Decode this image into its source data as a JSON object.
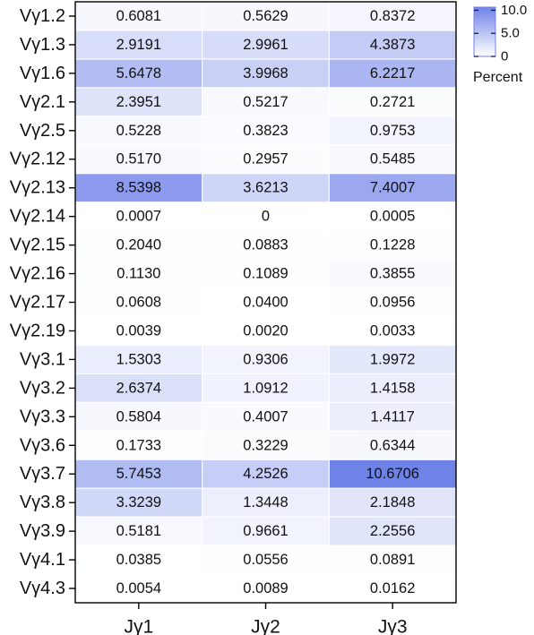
{
  "chart_data": {
    "type": "heatmap",
    "rows": [
      "Vγ1.2",
      "Vγ1.3",
      "Vγ1.6",
      "Vγ2.1",
      "Vγ2.5",
      "Vγ2.12",
      "Vγ2.13",
      "Vγ2.14",
      "Vγ2.15",
      "Vγ2.16",
      "Vγ2.17",
      "Vγ2.19",
      "Vγ3.1",
      "Vγ3.2",
      "Vγ3.3",
      "Vγ3.6",
      "Vγ3.7",
      "Vγ3.8",
      "Vγ3.9",
      "Vγ4.1",
      "Vγ4.3"
    ],
    "columns": [
      "Jγ1",
      "Jγ2",
      "Jγ3"
    ],
    "values": [
      [
        "0.6081",
        "0.5629",
        "0.8372"
      ],
      [
        "2.9191",
        "2.9961",
        "4.3873"
      ],
      [
        "5.6478",
        "3.9968",
        "6.2217"
      ],
      [
        "2.3951",
        "0.5217",
        "0.2721"
      ],
      [
        "0.5228",
        "0.3823",
        "0.9753"
      ],
      [
        "0.5170",
        "0.2957",
        "0.5485"
      ],
      [
        "8.5398",
        "3.6213",
        "7.4007"
      ],
      [
        "0.0007",
        "0",
        "0.0005"
      ],
      [
        "0.2040",
        "0.0883",
        "0.1228"
      ],
      [
        "0.1130",
        "0.1089",
        "0.3855"
      ],
      [
        "0.0608",
        "0.0400",
        "0.0956"
      ],
      [
        "0.0039",
        "0.0020",
        "0.0033"
      ],
      [
        "1.5303",
        "0.9306",
        "1.9972"
      ],
      [
        "2.6374",
        "1.0912",
        "1.4158"
      ],
      [
        "0.5804",
        "0.4007",
        "1.4117"
      ],
      [
        "0.1733",
        "0.3229",
        "0.6344"
      ],
      [
        "5.7453",
        "4.2526",
        "10.6706"
      ],
      [
        "3.3239",
        "1.3448",
        "2.1848"
      ],
      [
        "0.5181",
        "0.9661",
        "2.2556"
      ],
      [
        "0.0385",
        "0.0556",
        "0.0891"
      ],
      [
        "0.0054",
        "0.0089",
        "0.0162"
      ]
    ],
    "color_scale": {
      "min": 0,
      "max": 10.6706,
      "low_color": "#ffffff",
      "high_color": "#6f82e8"
    },
    "legend": {
      "title": "Percent",
      "ticks": [
        {
          "value": 10,
          "label": "10.0"
        },
        {
          "value": 5,
          "label": "5.0"
        },
        {
          "value": 0,
          "label": "0"
        }
      ],
      "position": "top-right"
    },
    "grid": false
  }
}
